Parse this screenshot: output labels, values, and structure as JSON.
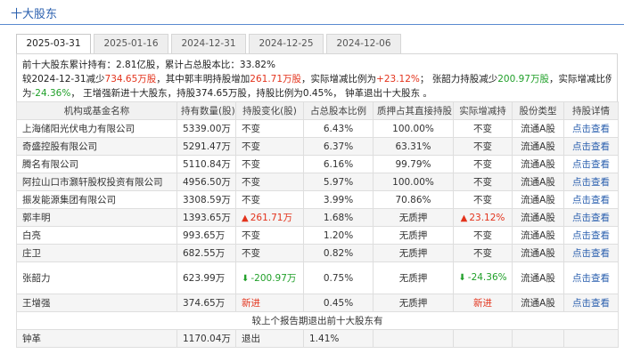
{
  "header": {
    "title": "十大股东"
  },
  "tabs": [
    {
      "label": "2025-03-31",
      "active": true
    },
    {
      "label": "2025-01-16",
      "active": false
    },
    {
      "label": "2024-12-31",
      "active": false
    },
    {
      "label": "2024-12-25",
      "active": false
    },
    {
      "label": "2024-12-06",
      "active": false
    }
  ],
  "summary": {
    "line1_prefix": "前十大股东累计持有：",
    "line1_shares": "2.81亿股",
    "line1_mid": "，累计占总股本比：",
    "line1_pct": "33.82%",
    "line2_a": "较2024-12-31减少",
    "line2_b": "734.65万股",
    "line2_c": "，其中郭丰明持股增加",
    "line2_d": "261.71万股",
    "line2_e": "，实际增减比例为",
    "line2_f": "+23.12%",
    "line2_g": "；  张韶力持股减少",
    "line2_h": "200.97万股",
    "line2_i": "，实际增减比例",
    "line3_a": "为",
    "line3_b": "-24.36%",
    "line3_c": "，  王增强新进十大股东，持股374.65万股，持股比例为0.45%，  钟革退出十大股东 。"
  },
  "table": {
    "headers": [
      "机构或基金名称",
      "持有数量(股)",
      "持股变化(股)",
      "占总股本比例",
      "质押占其直接持股比",
      "实际增减持",
      "股份类型",
      "持股详情"
    ],
    "rows": [
      {
        "name": "上海储阳光伏电力有限公司",
        "qty": "5339.00万",
        "change": "不变",
        "ratio": "6.43%",
        "pledge": "100.00%",
        "actual": "不变",
        "type": "流通A股",
        "detail": "点击查看"
      },
      {
        "name": "奇盛控股有限公司",
        "qty": "5291.47万",
        "change": "不变",
        "ratio": "6.37%",
        "pledge": "63.31%",
        "actual": "不变",
        "type": "流通A股",
        "detail": "点击查看"
      },
      {
        "name": "腾名有限公司",
        "qty": "5110.84万",
        "change": "不变",
        "ratio": "6.16%",
        "pledge": "99.79%",
        "actual": "不变",
        "type": "流通A股",
        "detail": "点击查看"
      },
      {
        "name": "阿拉山口市灏轩股权投资有限公司",
        "qty": "4956.50万",
        "change": "不变",
        "ratio": "5.97%",
        "pledge": "100.00%",
        "actual": "不变",
        "type": "流通A股",
        "detail": "点击查看"
      },
      {
        "name": "振发能源集团有限公司",
        "qty": "3308.59万",
        "change": "不变",
        "ratio": "3.99%",
        "pledge": "70.86%",
        "actual": "不变",
        "type": "流通A股",
        "detail": "点击查看"
      },
      {
        "name": "郭丰明",
        "qty": "1393.65万",
        "change": "261.71万",
        "ratio": "1.68%",
        "pledge": "无质押",
        "actual": "23.12%",
        "type": "流通A股",
        "detail": "点击查看"
      },
      {
        "name": "白亮",
        "qty": "993.65万",
        "change": "不变",
        "ratio": "1.20%",
        "pledge": "无质押",
        "actual": "不变",
        "type": "流通A股",
        "detail": "点击查看"
      },
      {
        "name": "庄卫",
        "qty": "682.55万",
        "change": "不变",
        "ratio": "0.82%",
        "pledge": "无质押",
        "actual": "不变",
        "type": "流通A股",
        "detail": "点击查看"
      },
      {
        "name": "张韶力",
        "qty": "623.99万",
        "change": "-200.97万",
        "ratio": "0.75%",
        "pledge": "无质押",
        "actual": "-24.36%",
        "type": "流通A股",
        "detail": "点击查看"
      },
      {
        "name": "王增强",
        "qty": "374.65万",
        "change": "新进",
        "ratio": "0.45%",
        "pledge": "无质押",
        "actual": "新进",
        "type": "流通A股",
        "detail": "点击查看"
      }
    ],
    "exit_header": "较上个报告期退出前十大股东有",
    "exit_row": {
      "name": "钟革",
      "qty": "1170.04万",
      "change": "退出",
      "ratio": "1.41%"
    }
  },
  "icons": {
    "up": "▲",
    "down": "⬇",
    "up_color": "#e3331c",
    "down_color": "#21a02a"
  }
}
